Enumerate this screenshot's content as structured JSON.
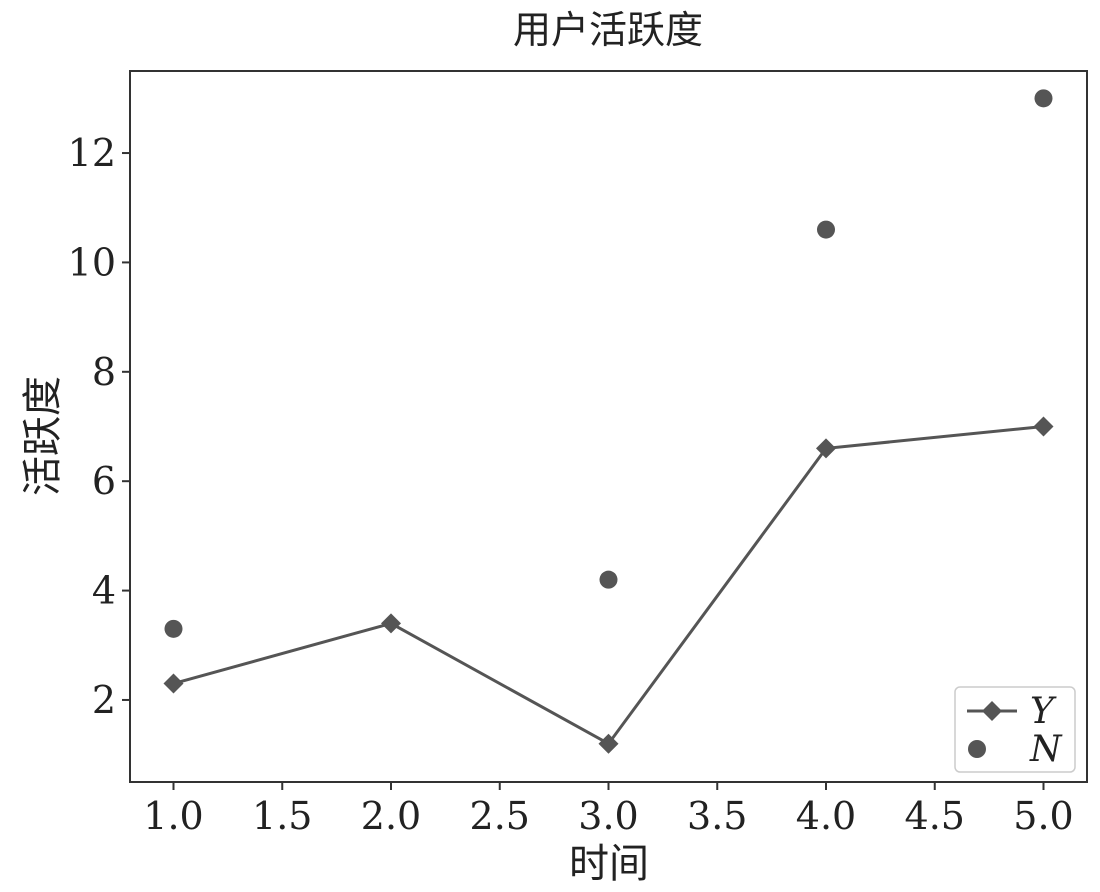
{
  "chart_data": {
    "type": "line",
    "title": "用户活跃度",
    "xlabel": "时间",
    "ylabel": "活跃度",
    "xlim": [
      0.8,
      5.2
    ],
    "ylim": [
      0.5,
      13.5
    ],
    "xticks": [
      1.0,
      1.5,
      2.0,
      2.5,
      3.0,
      3.5,
      4.0,
      4.5,
      5.0
    ],
    "xtick_labels": [
      "1.0",
      "1.5",
      "2.0",
      "2.5",
      "3.0",
      "3.5",
      "4.0",
      "4.5",
      "5.0"
    ],
    "yticks": [
      2,
      4,
      6,
      8,
      10,
      12
    ],
    "ytick_labels": [
      "2",
      "4",
      "6",
      "8",
      "10",
      "12"
    ],
    "grid": false,
    "legend_position": "bottom-right",
    "series": [
      {
        "name": "Y",
        "type": "line",
        "marker": "diamond",
        "color": "#555555",
        "x": [
          1,
          2,
          3,
          4,
          5
        ],
        "values": [
          2.3,
          3.4,
          1.2,
          6.6,
          7.0
        ]
      },
      {
        "name": "N",
        "type": "scatter",
        "marker": "circle",
        "color": "#555555",
        "x": [
          1,
          3,
          4,
          5
        ],
        "values": [
          3.3,
          4.2,
          10.6,
          13.0
        ]
      }
    ]
  }
}
